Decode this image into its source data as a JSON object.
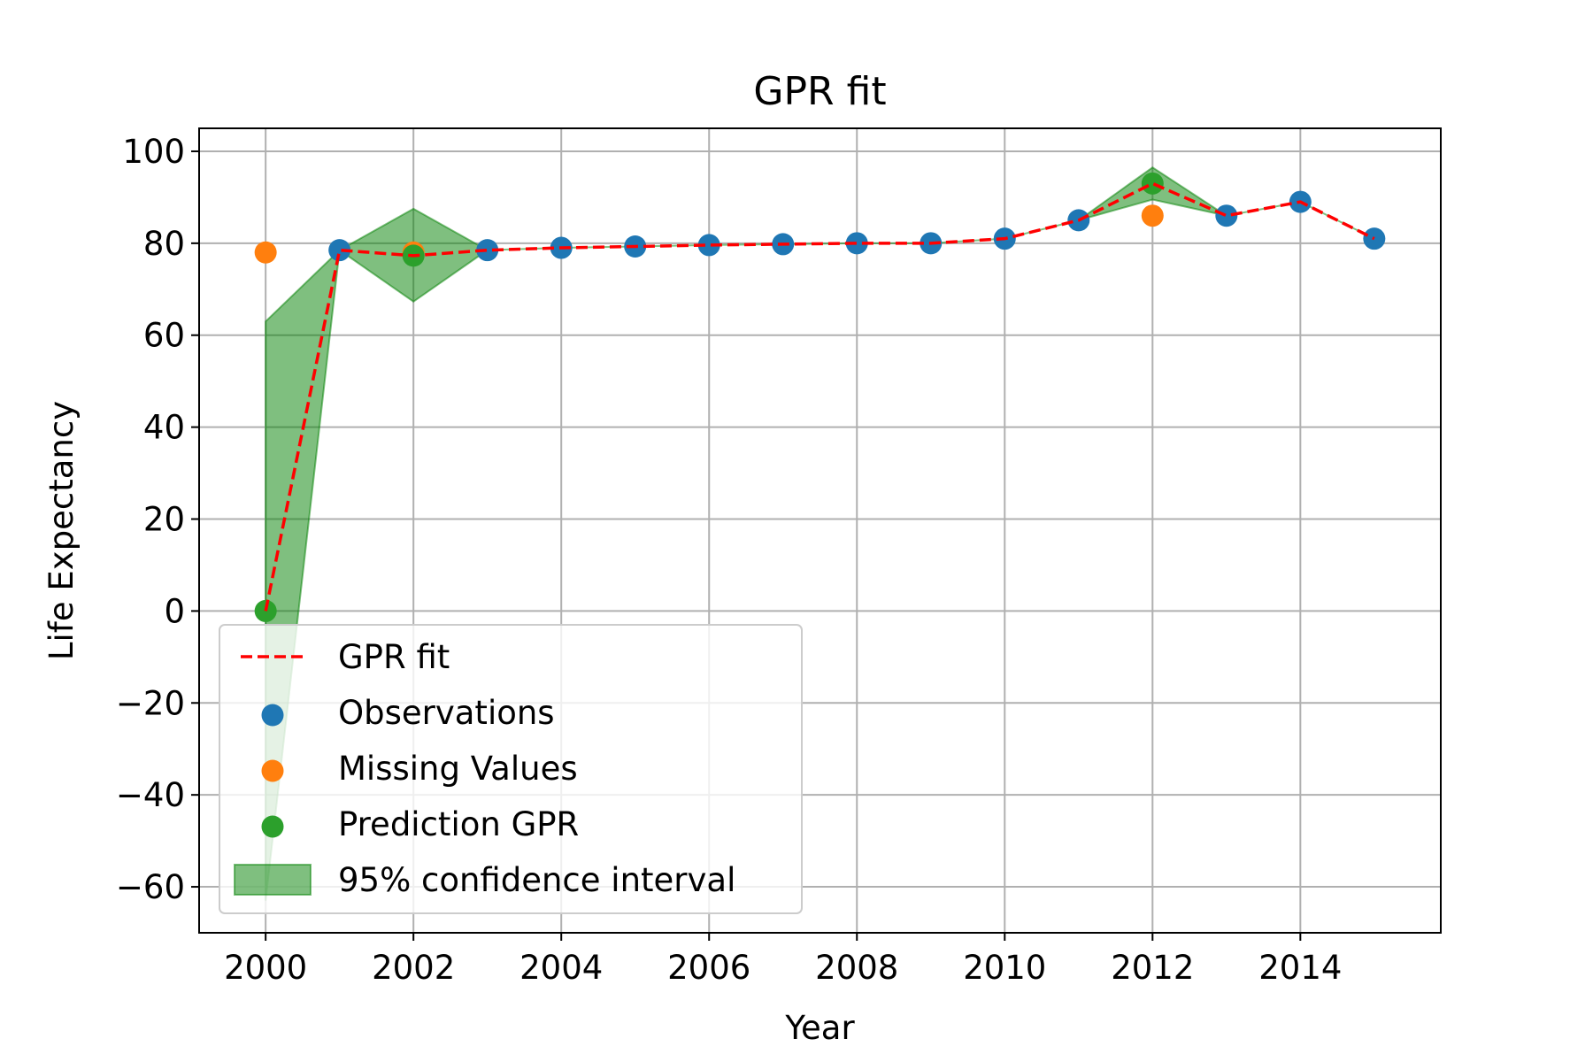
{
  "chart_data": {
    "type": "line",
    "title": "GPR fit",
    "xlabel": "Year",
    "ylabel": "Life Expectancy",
    "xlim": [
      1999.1,
      2015.9
    ],
    "ylim": [
      -70,
      105
    ],
    "x_ticks": [
      2000,
      2002,
      2004,
      2006,
      2008,
      2010,
      2012,
      2014
    ],
    "y_ticks": [
      -60,
      -40,
      -20,
      0,
      20,
      40,
      60,
      80,
      100
    ],
    "grid": true,
    "legend_position": "lower-left",
    "legend": [
      {
        "key": "fit",
        "label": "GPR fit"
      },
      {
        "key": "obs",
        "label": "Observations"
      },
      {
        "key": "missing",
        "label": "Missing Values"
      },
      {
        "key": "pred",
        "label": "Prediction GPR"
      },
      {
        "key": "ci",
        "label": "95% confidence interval"
      }
    ],
    "colors": {
      "fit": "#ff0000",
      "obs": "#1f77b4",
      "missing": "#ff7f0e",
      "pred": "#2ca02c",
      "ci": "#008000"
    },
    "gpr_fit": {
      "name": "GPR fit",
      "x": [
        2000,
        2001,
        2002,
        2003,
        2004,
        2005,
        2006,
        2007,
        2008,
        2009,
        2010,
        2011,
        2012,
        2013,
        2014,
        2015
      ],
      "y": [
        0,
        78.5,
        77.3,
        78.5,
        79.0,
        79.3,
        79.6,
        79.8,
        80.0,
        80.0,
        81.0,
        85.0,
        93.0,
        86.0,
        89.0,
        81.0
      ]
    },
    "confidence_interval": {
      "name": "95% confidence interval",
      "x": [
        2000,
        2001,
        2002,
        2003,
        2004,
        2005,
        2006,
        2007,
        2008,
        2009,
        2010,
        2011,
        2012,
        2013,
        2014,
        2015
      ],
      "lower": [
        -63,
        78.5,
        67.3,
        78.5,
        79.0,
        79.3,
        79.6,
        79.8,
        80.0,
        80.0,
        81.0,
        85.0,
        89.5,
        86.0,
        89.0,
        81.0
      ],
      "upper": [
        63,
        78.5,
        87.5,
        78.5,
        79.0,
        79.3,
        79.6,
        79.8,
        80.0,
        80.0,
        81.0,
        85.0,
        96.5,
        86.0,
        89.0,
        81.0
      ]
    },
    "observations": {
      "name": "Observations",
      "x": [
        2001,
        2003,
        2004,
        2005,
        2006,
        2007,
        2008,
        2009,
        2010,
        2011,
        2013,
        2014,
        2015
      ],
      "y": [
        78.5,
        78.5,
        79.0,
        79.3,
        79.6,
        79.8,
        80.0,
        80.0,
        81.0,
        85.0,
        86.0,
        89.0,
        81.0
      ]
    },
    "missing_values": {
      "name": "Missing Values",
      "x": [
        2000,
        2002,
        2012
      ],
      "y": [
        78.0,
        78.0,
        86.0
      ]
    },
    "prediction_gpr": {
      "name": "Prediction GPR",
      "x": [
        2000,
        2002,
        2012
      ],
      "y": [
        0,
        77.3,
        93.0
      ]
    }
  }
}
